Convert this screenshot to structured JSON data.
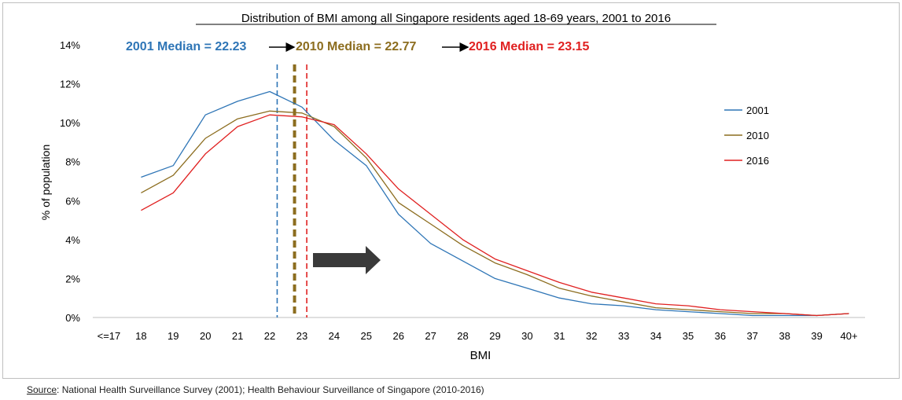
{
  "source": {
    "label": "Source",
    "text": ": National Health Surveillance Survey (2001); Health Behaviour Surveillance of Singapore (2010-2016)"
  },
  "chart_data": {
    "type": "line",
    "title": "Distribution of BMI among all Singapore residents aged 18-69 years, 2001 to 2016",
    "xlabel": "BMI",
    "ylabel": "% of population",
    "categories": [
      "<=17",
      "18",
      "19",
      "20",
      "21",
      "22",
      "23",
      "24",
      "25",
      "26",
      "27",
      "28",
      "29",
      "30",
      "31",
      "32",
      "33",
      "34",
      "35",
      "36",
      "37",
      "38",
      "39",
      "40+"
    ],
    "ylim": [
      0,
      14
    ],
    "yticks": [
      0,
      2,
      4,
      6,
      8,
      10,
      12,
      14
    ],
    "ytick_labels": [
      "0%",
      "2%",
      "4%",
      "6%",
      "8%",
      "10%",
      "12%",
      "14%"
    ],
    "legend_position": "right",
    "series": [
      {
        "name": "2001",
        "color": "#2e75b6",
        "values": [
          null,
          7.2,
          7.8,
          10.4,
          11.1,
          11.6,
          10.8,
          9.1,
          7.8,
          5.3,
          3.8,
          2.9,
          2.0,
          1.5,
          1.0,
          0.7,
          0.6,
          0.4,
          0.3,
          0.2,
          0.1,
          0.1,
          0.1,
          0.2
        ]
      },
      {
        "name": "2010",
        "color": "#8c6d1f",
        "values": [
          null,
          6.4,
          7.3,
          9.2,
          10.2,
          10.6,
          10.5,
          9.8,
          8.2,
          5.9,
          4.8,
          3.7,
          2.8,
          2.2,
          1.5,
          1.1,
          0.8,
          0.5,
          0.4,
          0.3,
          0.2,
          0.2,
          0.1,
          0.2
        ]
      },
      {
        "name": "2016",
        "color": "#e02020",
        "values": [
          null,
          5.5,
          6.4,
          8.4,
          9.8,
          10.4,
          10.3,
          9.9,
          8.4,
          6.6,
          5.3,
          4.0,
          3.0,
          2.4,
          1.8,
          1.3,
          1.0,
          0.7,
          0.6,
          0.4,
          0.3,
          0.2,
          0.1,
          0.2
        ]
      }
    ],
    "medians": [
      {
        "label": "2001 Median = 22.23",
        "value": 22.23,
        "color": "#2e75b6",
        "style": "thin-dash"
      },
      {
        "label": "2010 Median = 22.77",
        "value": 22.77,
        "color": "#8c6d1f",
        "style": "thick-dash"
      },
      {
        "label": "2016 Median = 23.15",
        "value": 23.15,
        "color": "#e02020",
        "style": "thin-dash"
      }
    ],
    "annotation_arrow": {
      "direction": "right",
      "color": "#3a3a3a"
    }
  }
}
